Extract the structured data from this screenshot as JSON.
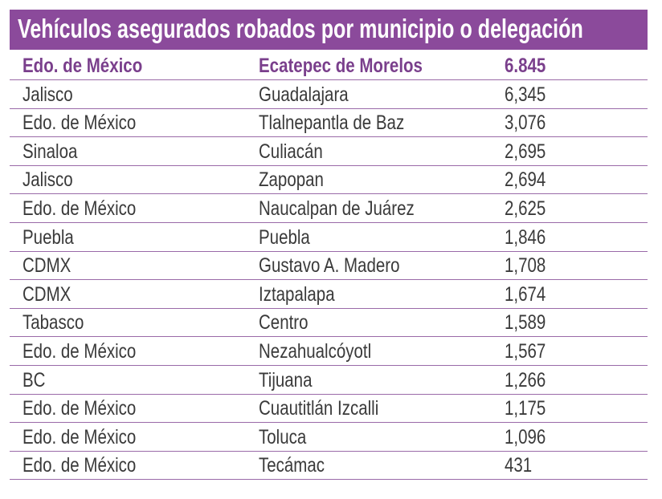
{
  "header": {
    "title": "Vehículos asegurados robados por municipio o delegación"
  },
  "table": {
    "rows": [
      [
        "Edo. de México",
        "Ecatepec de Morelos",
        "6.845"
      ],
      [
        "Jalisco",
        "Guadalajara",
        "6,345"
      ],
      [
        "Edo. de México",
        "Tlalnepantla de Baz",
        "3,076"
      ],
      [
        "Sinaloa",
        "Culiacán",
        "2,695"
      ],
      [
        "Jalisco",
        "Zapopan",
        "2,694"
      ],
      [
        "Edo. de México",
        "Naucalpan de Juárez",
        "2,625"
      ],
      [
        "Puebla",
        "Puebla",
        "1,846"
      ],
      [
        "CDMX",
        "Gustavo A. Madero",
        "1,708"
      ],
      [
        "CDMX",
        "Iztapalapa",
        "1,674"
      ],
      [
        "Tabasco",
        "Centro",
        "1,589"
      ],
      [
        "Edo. de México",
        "Nezahualcóyotl",
        "1,567"
      ],
      [
        "BC",
        "Tijuana",
        "1,266"
      ],
      [
        "Edo. de México",
        "Cuautitlán Izcalli",
        "1,175"
      ],
      [
        "Edo. de México",
        "Toluca",
        "1,096"
      ],
      [
        "Edo. de México",
        "Tecámac",
        "431"
      ]
    ]
  }
}
